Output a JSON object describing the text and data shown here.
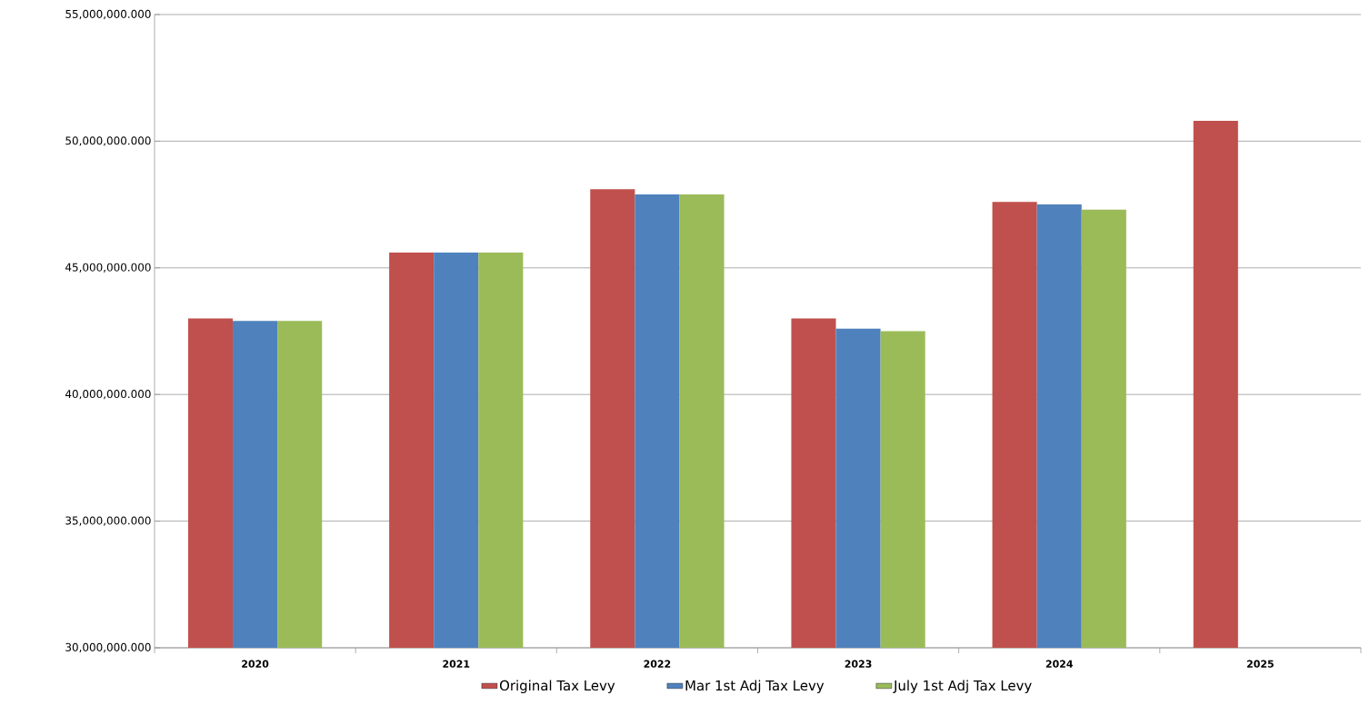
{
  "chart_data": {
    "type": "bar",
    "categories": [
      "2020",
      "2021",
      "2022",
      "2023",
      "2024",
      "2025"
    ],
    "series": [
      {
        "name": "Original Tax Levy",
        "color": "#c0504d",
        "values": [
          43000000,
          45600000,
          48100000,
          43000000,
          47600000,
          50800000
        ]
      },
      {
        "name": "Mar 1st Adj Tax Levy",
        "color": "#4f81bd",
        "values": [
          42900000,
          45600000,
          47900000,
          42600000,
          47500000,
          30000000
        ]
      },
      {
        "name": "July 1st Adj Tax Levy",
        "color": "#9bbb59",
        "values": [
          42900000,
          45600000,
          47900000,
          42500000,
          47300000,
          30000000
        ]
      }
    ],
    "ylim": [
      30000000,
      55000000
    ],
    "yticks": [
      {
        "value": 30000000,
        "label": "30,000,000.000"
      },
      {
        "value": 35000000,
        "label": "35,000,000.000"
      },
      {
        "value": 40000000,
        "label": "40,000,000.000"
      },
      {
        "value": 45000000,
        "label": "45,000,000.000"
      },
      {
        "value": 50000000,
        "label": "50,000,000.000"
      },
      {
        "value": 55000000,
        "label": "55,000,000.000"
      }
    ],
    "grid": "y",
    "legend": "bottom"
  }
}
